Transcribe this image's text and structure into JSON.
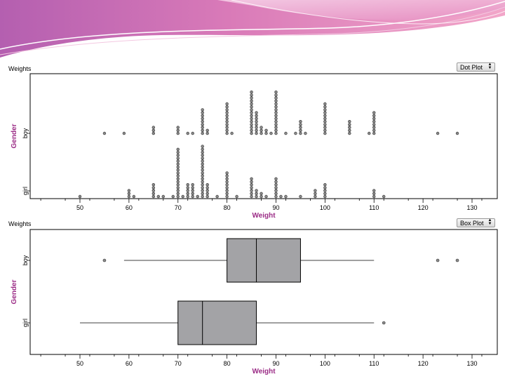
{
  "banner": {
    "colors": [
      "#e8a7cf",
      "#d86db0",
      "#f3c8e1",
      "#b45fb0"
    ]
  },
  "charts": [
    {
      "panel_title": "Weights",
      "plot_type_label": "Dot Plot",
      "chart_data": {
        "type": "scatter",
        "subtype": "dot plot",
        "xlabel": "Weight",
        "ylabel": "Gender",
        "xlim": [
          40,
          135
        ],
        "xticks": [
          "50",
          "60",
          "70",
          "80",
          "90",
          "100",
          "110",
          "120",
          "130"
        ],
        "categories": [
          "boy",
          "girl"
        ],
        "series": [
          {
            "name": "boy",
            "counts": [
              [
                55,
                1
              ],
              [
                59,
                1
              ],
              [
                65,
                3
              ],
              [
                70,
                3
              ],
              [
                72,
                1
              ],
              [
                73,
                1
              ],
              [
                75,
                9
              ],
              [
                76,
                2
              ],
              [
                80,
                11
              ],
              [
                81,
                1
              ],
              [
                85,
                15
              ],
              [
                86,
                8
              ],
              [
                87,
                3
              ],
              [
                88,
                2
              ],
              [
                89,
                1
              ],
              [
                90,
                15
              ],
              [
                92,
                1
              ],
              [
                94,
                1
              ],
              [
                95,
                5
              ],
              [
                96,
                1
              ],
              [
                100,
                11
              ],
              [
                105,
                5
              ],
              [
                109,
                1
              ],
              [
                110,
                8
              ],
              [
                123,
                1
              ],
              [
                127,
                1
              ]
            ]
          },
          {
            "name": "girl",
            "counts": [
              [
                50,
                1
              ],
              [
                60,
                3
              ],
              [
                61,
                1
              ],
              [
                65,
                5
              ],
              [
                66,
                1
              ],
              [
                67,
                1
              ],
              [
                69,
                1
              ],
              [
                70,
                17
              ],
              [
                71,
                1
              ],
              [
                72,
                5
              ],
              [
                73,
                5
              ],
              [
                74,
                1
              ],
              [
                75,
                18
              ],
              [
                76,
                5
              ],
              [
                78,
                1
              ],
              [
                80,
                9
              ],
              [
                82,
                1
              ],
              [
                85,
                7
              ],
              [
                86,
                3
              ],
              [
                87,
                2
              ],
              [
                88,
                1
              ],
              [
                90,
                7
              ],
              [
                91,
                1
              ],
              [
                92,
                1
              ],
              [
                95,
                1
              ],
              [
                98,
                3
              ],
              [
                100,
                5
              ],
              [
                110,
                3
              ],
              [
                112,
                1
              ]
            ]
          }
        ]
      }
    },
    {
      "panel_title": "Weights",
      "plot_type_label": "Box Plot",
      "chart_data": {
        "type": "box",
        "xlabel": "Weight",
        "ylabel": "Gender",
        "xlim": [
          40,
          135
        ],
        "xticks": [
          "50",
          "60",
          "70",
          "80",
          "90",
          "100",
          "110",
          "120",
          "130"
        ],
        "categories": [
          "boy",
          "girl"
        ],
        "series": [
          {
            "name": "boy",
            "min": 59,
            "q1": 80,
            "median": 86,
            "q3": 95,
            "max": 110,
            "outliers": [
              55,
              123,
              127
            ]
          },
          {
            "name": "girl",
            "min": 50,
            "q1": 70,
            "median": 75,
            "q3": 86,
            "max": 110,
            "outliers": [
              112
            ]
          }
        ],
        "box_fill": "#a3a3a6",
        "label_color": "#9b2c86"
      }
    }
  ]
}
